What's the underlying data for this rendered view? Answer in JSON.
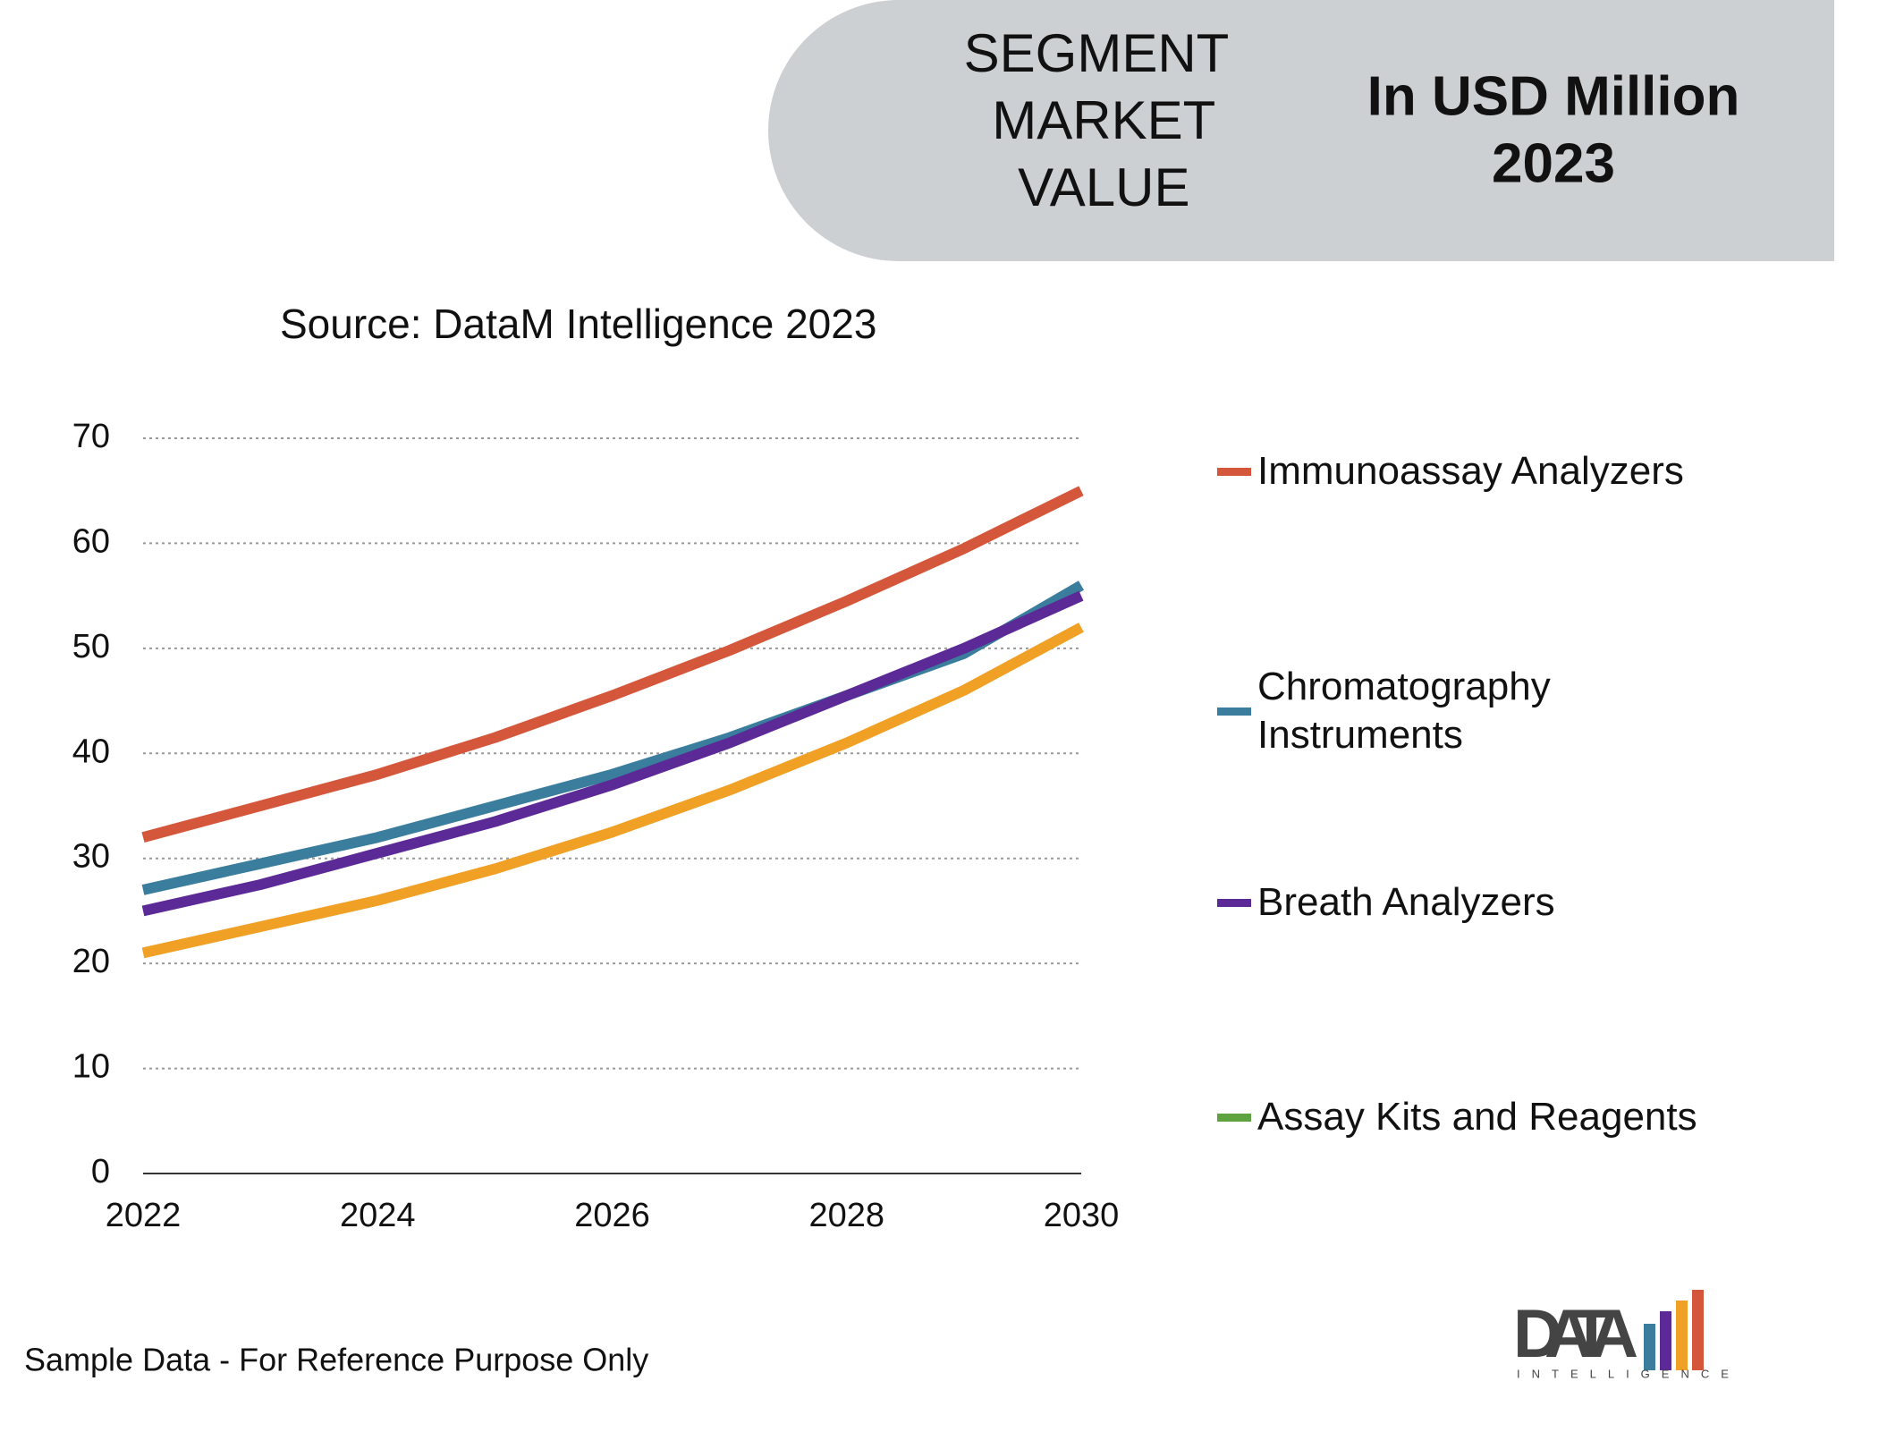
{
  "header": {
    "label": "SEGMENT MARKET VALUE",
    "unit": "In USD Million",
    "year": "2023"
  },
  "footer": "Sample Data - For Reference Purpose Only",
  "logo": {
    "name": "DATA",
    "tagline": "INTELLIGENCE"
  },
  "chart_data": {
    "type": "line",
    "subtitle": "Source: DataM Intelligence 2023",
    "x": [
      2022,
      2023,
      2024,
      2025,
      2026,
      2027,
      2028,
      2029,
      2030
    ],
    "xlim": [
      2022,
      2030
    ],
    "xticks": [
      2022,
      2024,
      2026,
      2028,
      2030
    ],
    "ylim": [
      0,
      70
    ],
    "yticks": [
      0,
      10,
      20,
      30,
      40,
      50,
      60,
      70
    ],
    "grid": true,
    "series": [
      {
        "name": "Immunoassay Analyzers",
        "color": "#d5573b",
        "values": [
          32,
          35,
          38,
          41.5,
          45.5,
          49.8,
          54.5,
          59.5,
          65
        ]
      },
      {
        "name": "Chromatography Instruments",
        "color": "#3a7d9c",
        "values": [
          27,
          29.5,
          32,
          35,
          38,
          41.5,
          45.5,
          49.5,
          56
        ]
      },
      {
        "name": "Breath Analyzers",
        "color": "#5b2a96",
        "values": [
          25,
          27.5,
          30.5,
          33.5,
          37,
          41,
          45.5,
          50,
          55
        ]
      },
      {
        "name": "Assay Kits and Reagents",
        "color": "#5fa341",
        "values": [
          null,
          null,
          null,
          null,
          null,
          null,
          null,
          null,
          null
        ]
      },
      {
        "name": null,
        "color": "#f0a025",
        "values": [
          21,
          23.5,
          26,
          29,
          32.5,
          36.5,
          41,
          46,
          52
        ]
      }
    ]
  }
}
